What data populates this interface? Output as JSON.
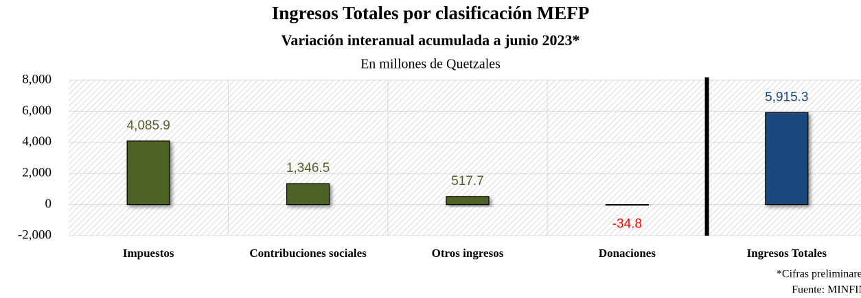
{
  "chart_data": {
    "type": "bar",
    "title": "Ingresos Totales por clasificación MEFP",
    "subtitle": "Variación interanual acumulada a junio 2023*",
    "y_label": "En millones de Quetzales",
    "categories": [
      "Impuestos",
      "Contribuciones sociales",
      "Otros ingresos",
      "Donaciones",
      "Ingresos Totales"
    ],
    "values": [
      4085.9,
      1346.5,
      517.7,
      -34.8,
      5915.3
    ],
    "value_labels": [
      "4,085.9",
      "1,346.5",
      "517.7",
      "-34.8",
      "5,915.3"
    ],
    "colors": [
      "#4f6228",
      "#4f6228",
      "#4f6228",
      "#4f6228",
      "#1f497d"
    ],
    "value_label_colors": [
      "#4f6228",
      "#4f6228",
      "#4f6228",
      "#ff0000",
      "#1f497d"
    ],
    "ylim": [
      -2000,
      8000
    ],
    "yticks": [
      {
        "value": -2000,
        "label": "-2,000"
      },
      0,
      {
        "value": 2000,
        "label": "2,000"
      },
      {
        "value": 4000,
        "label": "4,000"
      },
      {
        "value": 6000,
        "label": "6,000"
      },
      {
        "value": 8000,
        "label": "8,000"
      }
    ],
    "grid": true,
    "notes": [
      "*Cifras preliminares",
      "Fuente: MINFIN"
    ]
  }
}
